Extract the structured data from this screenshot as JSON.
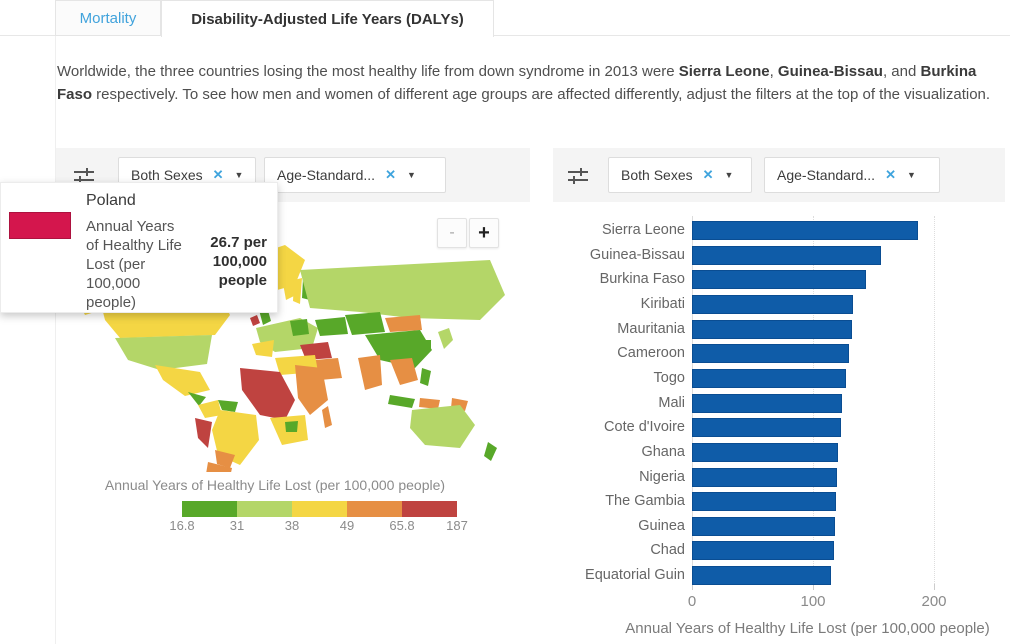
{
  "tabs": {
    "mortality": "Mortality",
    "dalys": "Disability-Adjusted Life Years (DALYs)"
  },
  "intro": {
    "s1": "Worldwide, the three countries losing the most healthy life from down syndrome in 2013 were ",
    "b1": "Sierra Leone",
    "s2": ", ",
    "b2": "Guinea-Bissau",
    "s3": ", and ",
    "b3": "Burkina Faso",
    "s4": " respectively. To see how men and women of different age groups are affected differently, adjust the filters at the top of the visualization."
  },
  "filters": {
    "sex": "Both Sexes",
    "age": "Age-Standard...",
    "remove_icon": "✕",
    "caret_icon": "▼"
  },
  "tooltip": {
    "country": "Poland",
    "metric": "Annual Years of Healthy Life Lost (per 100,000 people)",
    "value": "26.7 per 100,000 people",
    "swatch_color": "#d4164d"
  },
  "map": {
    "zoom_out": "-",
    "zoom_in": "+",
    "legend": {
      "title": "Annual Years of Healthy Life Lost (per 100,000 people)",
      "colors": [
        "#58a829",
        "#b4d668",
        "#f4d644",
        "#e68f44",
        "#bf4340"
      ],
      "ticks": [
        "16.8",
        "31",
        "38",
        "49",
        "65.8",
        "187"
      ]
    }
  },
  "map_palette": {
    "green": "#58a829",
    "light_green": "#b4d668",
    "yellow": "#f4d644",
    "orange": "#e68f44",
    "red": "#bf4340",
    "highlight": "#d4164d"
  },
  "chart_data": {
    "type": "bar",
    "orientation": "horizontal",
    "categories": [
      "Sierra Leone",
      "Guinea-Bissau",
      "Burkina Faso",
      "Kiribati",
      "Mauritania",
      "Cameroon",
      "Togo",
      "Mali",
      "Cote d'Ivoire",
      "Ghana",
      "Nigeria",
      "The Gambia",
      "Guinea",
      "Chad",
      "Equatorial Guin"
    ],
    "values": [
      187,
      156,
      144,
      133,
      132,
      130,
      127,
      124,
      123,
      121,
      120,
      119,
      118,
      117,
      115
    ],
    "xlabel": "Annual Years of Healthy Life Lost (per 100,000 people)",
    "xticks": [
      0,
      100,
      200
    ],
    "xlim": [
      0,
      265
    ],
    "bar_color": "#0f5ca8",
    "grid": "vertical-dotted",
    "legend_position": "none"
  }
}
